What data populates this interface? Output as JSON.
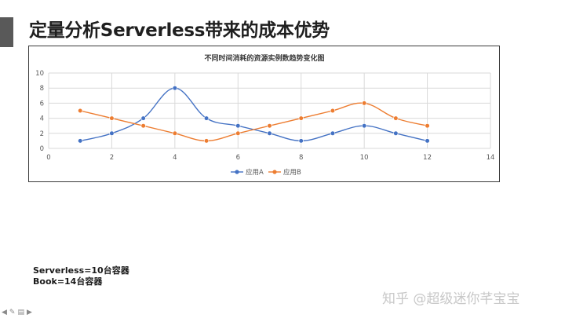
{
  "slide": {
    "title": "定量分析Serverless带来的成本优势",
    "notes": [
      "Serverless=10台容器",
      "Book=14台容器"
    ],
    "watermark": "知乎 @超级迷你芊宝宝",
    "nav_icons": [
      "prev-arrow-icon",
      "pen-icon",
      "menu-icon",
      "next-arrow-icon"
    ]
  },
  "colors": {
    "accent": "#595959",
    "series_a": "#4472C4",
    "series_b": "#ED7D31",
    "grid": "#D9D9D9",
    "axis_text": "#595959"
  },
  "chart_data": {
    "type": "line",
    "title": "不同时间消耗的资源实例数趋势变化图",
    "xlabel": "",
    "ylabel": "",
    "xlim": [
      0,
      14
    ],
    "ylim": [
      0,
      10
    ],
    "xticks": [
      0,
      2,
      4,
      6,
      8,
      10,
      12,
      14
    ],
    "yticks": [
      0,
      2,
      4,
      6,
      8,
      10
    ],
    "grid": true,
    "smooth": true,
    "legend_position": "bottom",
    "x": [
      1,
      2,
      3,
      4,
      5,
      6,
      7,
      8,
      9,
      10,
      11,
      12
    ],
    "series": [
      {
        "name": "应用A",
        "color": "#4472C4",
        "values": [
          1,
          2,
          4,
          8,
          4,
          3,
          2,
          1,
          2,
          3,
          2,
          1
        ]
      },
      {
        "name": "应用B",
        "color": "#ED7D31",
        "values": [
          5,
          4,
          3,
          2,
          1,
          2,
          3,
          4,
          5,
          6,
          4,
          3
        ]
      }
    ]
  }
}
